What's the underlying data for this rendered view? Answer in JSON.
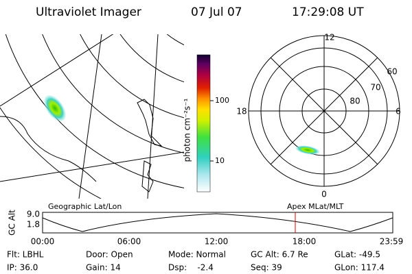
{
  "header": {
    "instrument": "Ultraviolet Imager",
    "date": "07 Jul 07",
    "time": "17:29:08 UT"
  },
  "colorbar": {
    "label": "photon cm⁻²s⁻¹",
    "ticks": [
      "100",
      "10"
    ]
  },
  "polar_plot": {
    "mlt_labels": [
      "12",
      "6",
      "0",
      "18"
    ],
    "lat_labels": [
      "60",
      "70",
      "80"
    ]
  },
  "timeline": {
    "axis_label": "GC Alt",
    "alt_labels": [
      "9.0",
      "1.8"
    ],
    "left_caption": "Geographic Lat/Lon",
    "right_caption": "Apex MLat/MLT",
    "time_labels": [
      "00:00",
      "06:00",
      "12:00",
      "18:00",
      "23:59"
    ]
  },
  "status": {
    "rows": [
      [
        "Flt: LBHL",
        "Door: Open",
        "Mode: Normal",
        "GC Alt: 6.7 Re",
        "GLat: -49.5"
      ],
      [
        "IP: 36.0",
        "Gain: 14",
        "Dsp:    -2.4",
        "Seq: 39",
        "GLon: 117.4"
      ]
    ]
  }
}
